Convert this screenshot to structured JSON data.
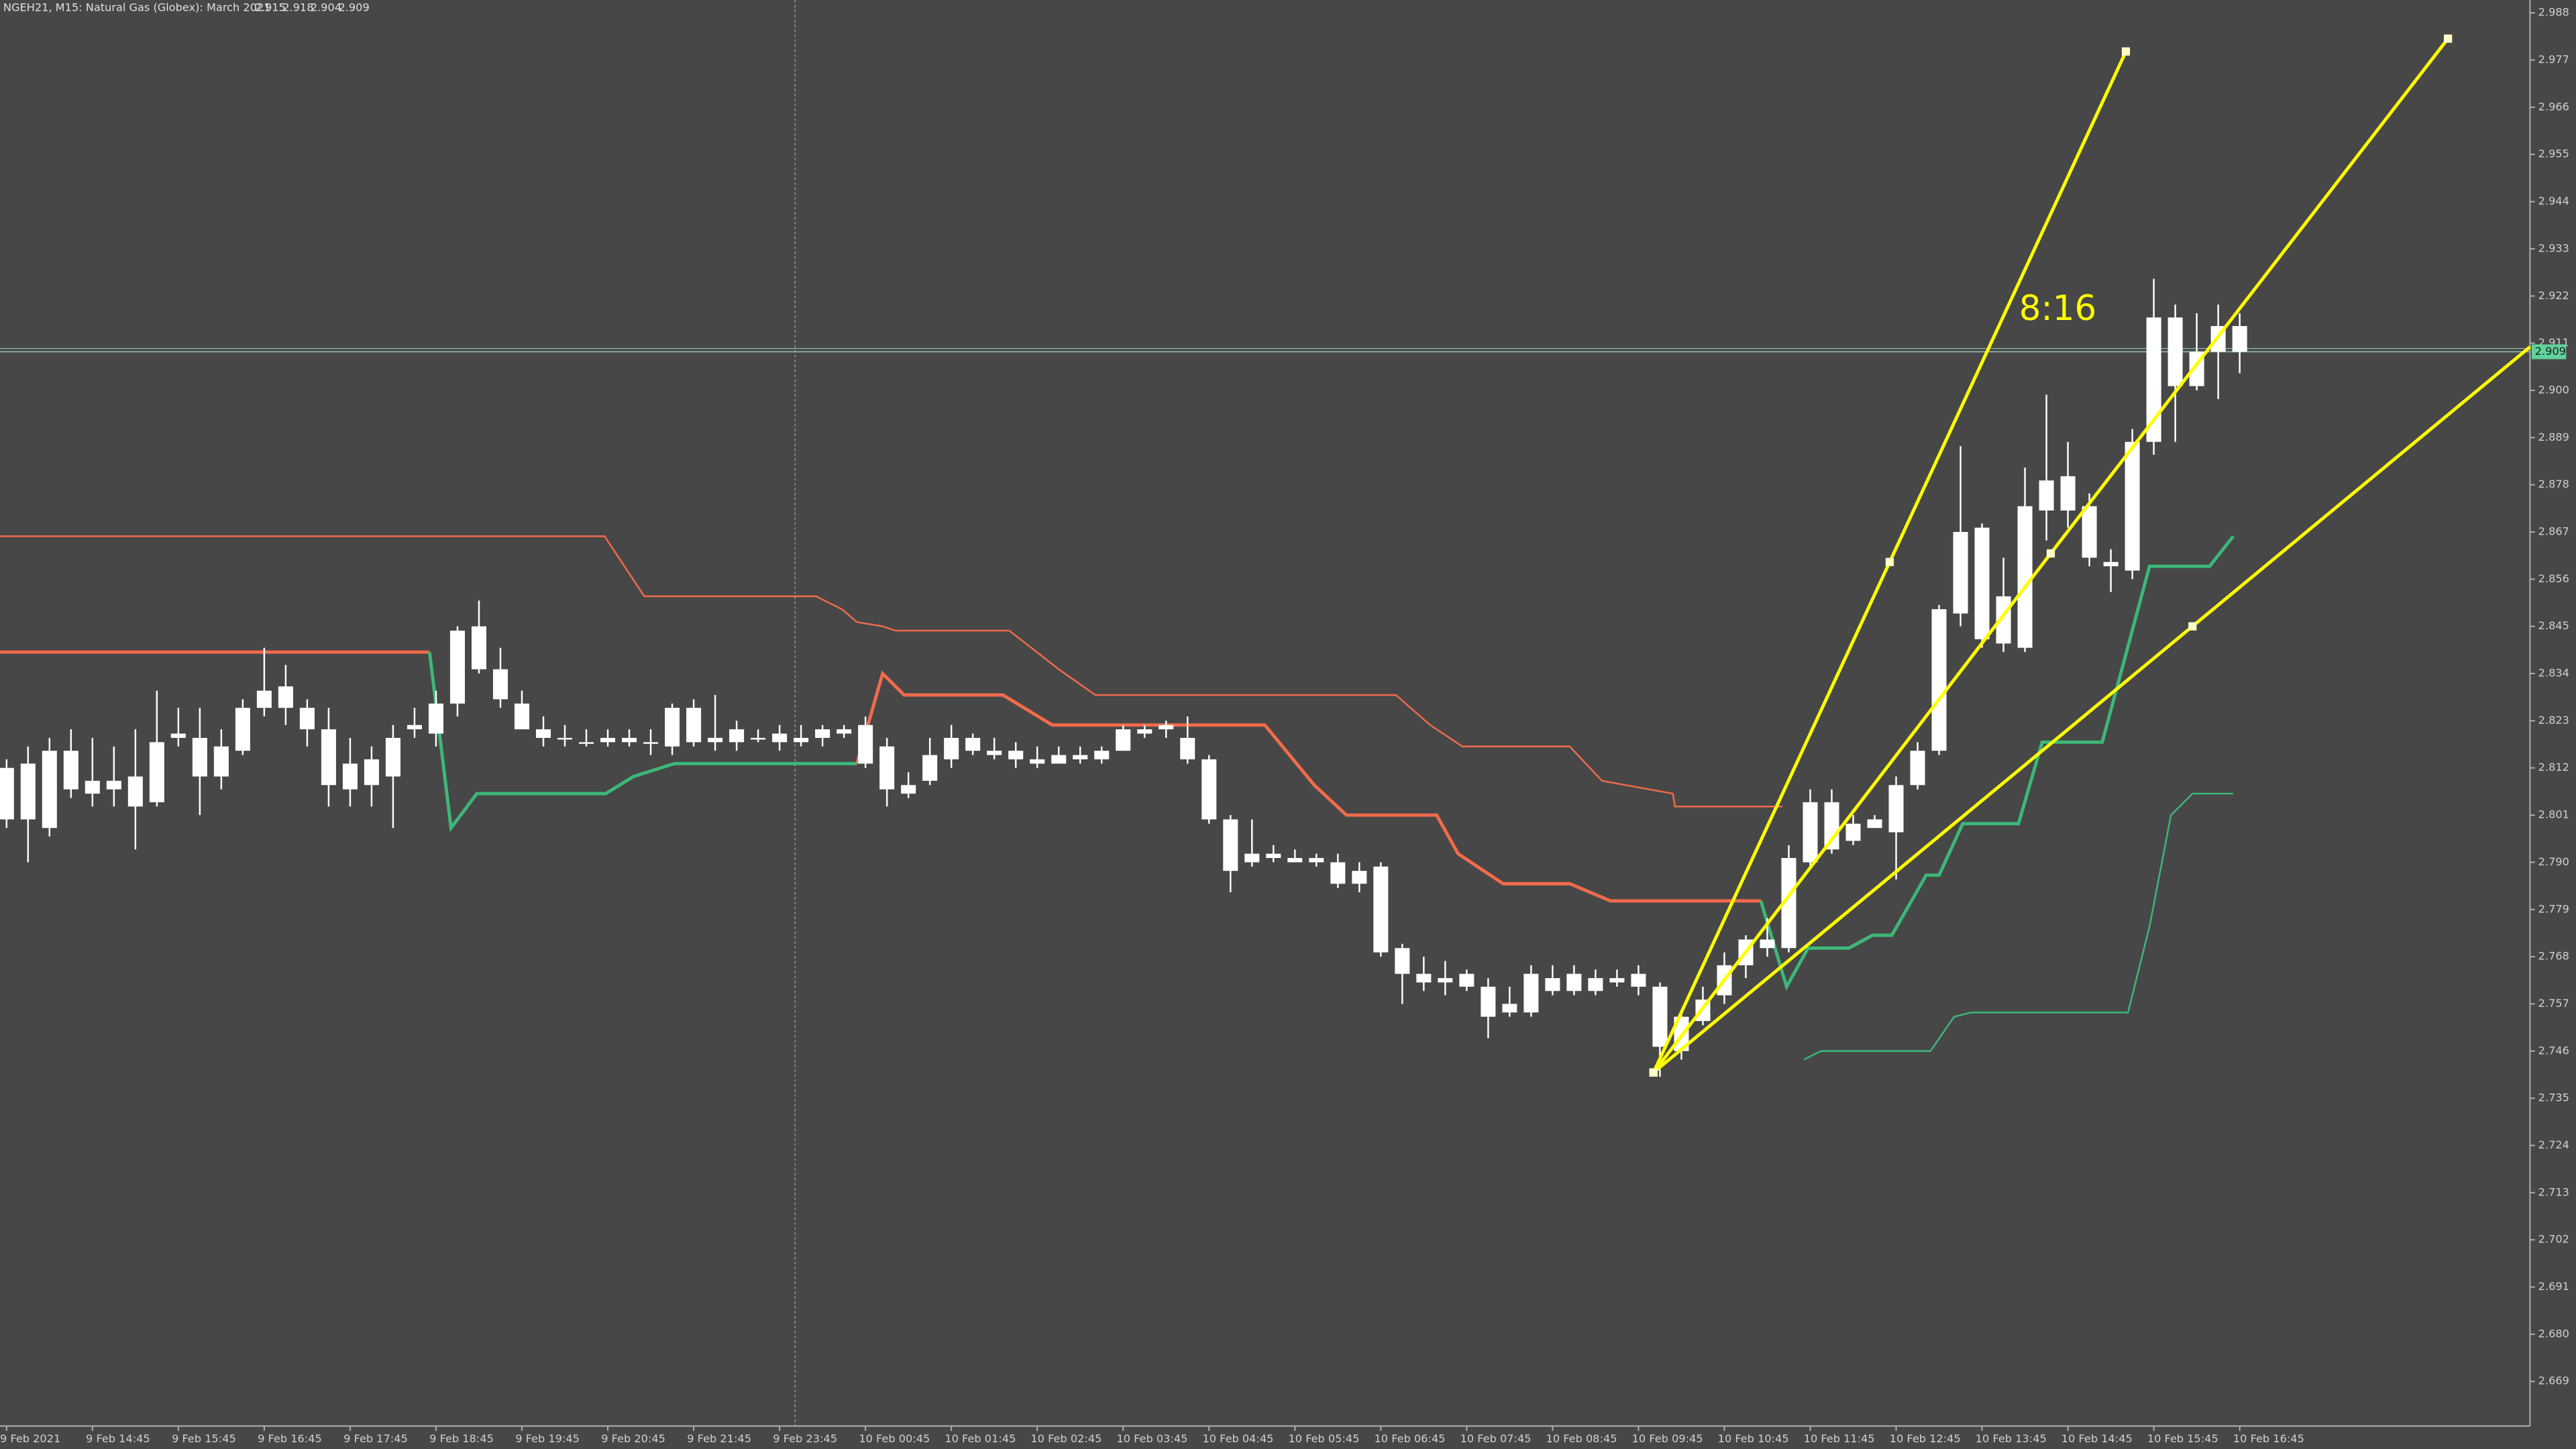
{
  "chart_data": {
    "type": "candlestick",
    "title": "NGEH21, M15:  Natural Gas (Globex): March 2021",
    "candle_color": "#ffffff",
    "background": "#474747",
    "ylim": [
      2.6586,
      2.991
    ],
    "xlim": [
      -0.306,
      117.52
    ],
    "yticks": [
      2.988,
      2.977,
      2.966,
      2.955,
      2.944,
      2.933,
      2.922,
      2.911,
      {
        "value": 2.9,
        "label": "2.900"
      },
      2.889,
      2.878,
      2.867,
      2.856,
      2.845,
      2.834,
      2.823,
      2.812,
      2.801,
      {
        "value": 2.79,
        "label": "2.790"
      },
      2.779,
      2.768,
      2.757,
      2.746,
      2.735,
      2.724,
      2.713,
      2.702,
      2.691,
      {
        "value": 2.68,
        "label": "2.680"
      },
      2.669
    ],
    "xticks": [
      {
        "value": 0,
        "label": "9 Feb 2021"
      },
      {
        "value": 4,
        "label": "9 Feb 14:45"
      },
      {
        "value": 8,
        "label": "9 Feb 15:45"
      },
      {
        "value": 12,
        "label": "9 Feb 16:45"
      },
      {
        "value": 16,
        "label": "9 Feb 17:45"
      },
      {
        "value": 20,
        "label": "9 Feb 18:45"
      },
      {
        "value": 24,
        "label": "9 Feb 19:45"
      },
      {
        "value": 28,
        "label": "9 Feb 20:45"
      },
      {
        "value": 32,
        "label": "9 Feb 21:45"
      },
      {
        "value": 36,
        "label": "9 Feb 23:45"
      },
      {
        "value": 40,
        "label": "10 Feb 00:45"
      },
      {
        "value": 44,
        "label": "10 Feb 01:45"
      },
      {
        "value": 48,
        "label": "10 Feb 02:45"
      },
      {
        "value": 52,
        "label": "10 Feb 03:45"
      },
      {
        "value": 56,
        "label": "10 Feb 04:45"
      },
      {
        "value": 60,
        "label": "10 Feb 05:45"
      },
      {
        "value": 64,
        "label": "10 Feb 06:45"
      },
      {
        "value": 68,
        "label": "10 Feb 07:45"
      },
      {
        "value": 72,
        "label": "10 Feb 08:45"
      },
      {
        "value": 76,
        "label": "10 Feb 09:45"
      },
      {
        "value": 80,
        "label": "10 Feb 10:45"
      },
      {
        "value": 84,
        "label": "10 Feb 11:45"
      },
      {
        "value": 88,
        "label": "10 Feb 12:45"
      },
      {
        "value": 92,
        "label": "10 Feb 13:45"
      },
      {
        "value": 96,
        "label": "10 Feb 14:45"
      },
      {
        "value": 100,
        "label": "10 Feb 15:45"
      },
      {
        "value": 104,
        "label": "10 Feb 16:45"
      }
    ],
    "candles": {
      "open": [
        2.8,
        2.8,
        2.798,
        2.807,
        2.806,
        2.807,
        2.803,
        2.804,
        2.819,
        2.81,
        2.81,
        2.816,
        2.826,
        2.826,
        2.821,
        2.808,
        2.807,
        2.808,
        2.81,
        2.821,
        2.82,
        2.827,
        2.835,
        2.828,
        2.821,
        2.819,
        2.819,
        2.818,
        2.818,
        2.818,
        2.818,
        2.817,
        2.818,
        2.818,
        2.818,
        2.819,
        2.818,
        2.818,
        2.819,
        2.82,
        2.813,
        2.817,
        2.808,
        2.809,
        2.814,
        2.819,
        2.816,
        2.816,
        2.814,
        2.813,
        2.814,
        2.814,
        2.816,
        2.82,
        2.821,
        2.819,
        2.814,
        2.8,
        2.79,
        2.792,
        2.791,
        2.791,
        2.79,
        2.788,
        2.789,
        2.77,
        2.764,
        2.763,
        2.764,
        2.761,
        2.755,
        2.755,
        2.76,
        2.76,
        2.763,
        2.762,
        2.764,
        2.761,
        2.746,
        2.753,
        2.759,
        2.766,
        2.77,
        2.77,
        2.79,
        2.804,
        2.795,
        2.798,
        2.797,
        2.808,
        2.816,
        2.848,
        2.868,
        2.841,
        2.84,
        2.872,
        2.88,
        2.873,
        2.859,
        2.858,
        2.888,
        2.917,
        2.901,
        2.909,
        2.915
      ],
      "high": [
        2.814,
        2.817,
        2.819,
        2.821,
        2.819,
        2.817,
        2.821,
        2.83,
        2.826,
        2.826,
        2.821,
        2.828,
        2.84,
        2.836,
        2.828,
        2.826,
        2.819,
        2.817,
        2.822,
        2.826,
        2.83,
        2.845,
        2.851,
        2.84,
        2.83,
        2.824,
        2.822,
        2.821,
        2.821,
        2.821,
        2.821,
        2.827,
        2.828,
        2.829,
        2.823,
        2.821,
        2.822,
        2.822,
        2.822,
        2.822,
        2.824,
        2.819,
        2.811,
        2.819,
        2.822,
        2.82,
        2.819,
        2.818,
        2.817,
        2.817,
        2.817,
        2.817,
        2.822,
        2.822,
        2.823,
        2.824,
        2.815,
        2.801,
        2.8,
        2.794,
        2.793,
        2.792,
        2.792,
        2.79,
        2.79,
        2.771,
        2.768,
        2.767,
        2.765,
        2.763,
        2.761,
        2.766,
        2.766,
        2.766,
        2.765,
        2.765,
        2.766,
        2.762,
        2.755,
        2.761,
        2.769,
        2.773,
        2.777,
        2.794,
        2.807,
        2.807,
        2.801,
        2.801,
        2.81,
        2.818,
        2.85,
        2.887,
        2.869,
        2.861,
        2.882,
        2.899,
        2.888,
        2.876,
        2.863,
        2.891,
        2.926,
        2.92,
        2.918,
        2.92,
        2.918
      ],
      "low": [
        2.798,
        2.79,
        2.796,
        2.805,
        2.803,
        2.803,
        2.793,
        2.803,
        2.817,
        2.801,
        2.807,
        2.815,
        2.824,
        2.822,
        2.817,
        2.803,
        2.803,
        2.803,
        2.798,
        2.819,
        2.817,
        2.824,
        2.834,
        2.826,
        2.821,
        2.817,
        2.817,
        2.817,
        2.817,
        2.817,
        2.815,
        2.815,
        2.817,
        2.816,
        2.816,
        2.818,
        2.816,
        2.817,
        2.817,
        2.819,
        2.812,
        2.803,
        2.805,
        2.808,
        2.812,
        2.815,
        2.814,
        2.812,
        2.812,
        2.813,
        2.813,
        2.813,
        2.816,
        2.819,
        2.819,
        2.813,
        2.799,
        2.783,
        2.789,
        2.79,
        2.79,
        2.789,
        2.784,
        2.783,
        2.768,
        2.757,
        2.76,
        2.759,
        2.76,
        2.749,
        2.754,
        2.754,
        2.759,
        2.759,
        2.759,
        2.761,
        2.759,
        2.74,
        2.744,
        2.752,
        2.757,
        2.763,
        2.768,
        2.769,
        2.789,
        2.792,
        2.794,
        2.798,
        2.786,
        2.807,
        2.815,
        2.845,
        2.84,
        2.839,
        2.839,
        2.865,
        2.868,
        2.859,
        2.853,
        2.856,
        2.885,
        2.888,
        2.9,
        2.898,
        2.904
      ],
      "close": [
        2.812,
        2.813,
        2.816,
        2.816,
        2.809,
        2.809,
        2.81,
        2.818,
        2.82,
        2.819,
        2.817,
        2.826,
        2.83,
        2.831,
        2.826,
        2.821,
        2.813,
        2.814,
        2.819,
        2.822,
        2.827,
        2.844,
        2.845,
        2.835,
        2.827,
        2.821,
        2.819,
        2.818,
        2.819,
        2.819,
        2.818,
        2.826,
        2.826,
        2.819,
        2.821,
        2.819,
        2.82,
        2.819,
        2.821,
        2.821,
        2.822,
        2.807,
        2.806,
        2.815,
        2.819,
        2.816,
        2.815,
        2.814,
        2.813,
        2.815,
        2.815,
        2.816,
        2.821,
        2.821,
        2.822,
        2.814,
        2.8,
        2.788,
        2.792,
        2.791,
        2.79,
        2.79,
        2.785,
        2.785,
        2.769,
        2.764,
        2.762,
        2.762,
        2.761,
        2.754,
        2.757,
        2.764,
        2.763,
        2.764,
        2.76,
        2.763,
        2.761,
        2.747,
        2.754,
        2.758,
        2.766,
        2.772,
        2.772,
        2.791,
        2.804,
        2.793,
        2.799,
        2.8,
        2.808,
        2.816,
        2.849,
        2.867,
        2.842,
        2.852,
        2.873,
        2.879,
        2.872,
        2.861,
        2.86,
        2.888,
        2.917,
        2.901,
        2.909,
        2.915,
        2.909
      ]
    },
    "lines": [
      {
        "color": "#f26b4b",
        "width": 1,
        "x": [
          -0.3,
          27.85,
          29.7,
          37.7,
          38.9,
          39.6,
          40.8,
          41.4,
          46.7,
          49.0,
          50.7,
          64.7,
          66.3,
          67.8,
          72.8,
          74.3,
          77.6,
          77.7,
          82.7
        ],
        "values": [
          2.866,
          2.866,
          2.852,
          2.852,
          2.849,
          2.846,
          2.845,
          2.844,
          2.844,
          2.835,
          2.829,
          2.829,
          2.822,
          2.817,
          2.817,
          2.809,
          2.806,
          2.803,
          2.803
        ]
      },
      {
        "color": "#f26b4b",
        "width": 2,
        "x": [
          -0.3,
          19.7
        ],
        "values": [
          2.839,
          2.839
        ]
      },
      {
        "color": "#3cb878",
        "width": 2,
        "x": [
          19.7,
          20.7,
          21.9,
          27.9,
          29.2,
          31.1,
          39.6
        ],
        "values": [
          2.839,
          2.798,
          2.806,
          2.806,
          2.81,
          2.813,
          2.813
        ]
      },
      {
        "color": "#f26b4b",
        "width": 2,
        "x": [
          39.6,
          40.8,
          41.8,
          46.4,
          48.7,
          50.2,
          58.6,
          60.9,
          62.4,
          66.6,
          67.6,
          69.7,
          72.8,
          74.7,
          81.7
        ],
        "values": [
          2.813,
          2.834,
          2.829,
          2.829,
          2.822,
          2.822,
          2.822,
          2.808,
          2.801,
          2.801,
          2.792,
          2.785,
          2.785,
          2.781,
          2.781
        ]
      },
      {
        "color": "#3cb878",
        "width": 2,
        "x": [
          81.7,
          82.9,
          83.9,
          85.8,
          86.9,
          87.8,
          89.4,
          90.0,
          91.1,
          93.7,
          94.8,
          97.6,
          99.8,
          102.6,
          103.7
        ],
        "values": [
          2.781,
          2.761,
          2.77,
          2.77,
          2.773,
          2.773,
          2.787,
          2.787,
          2.799,
          2.799,
          2.818,
          2.818,
          2.859,
          2.859,
          2.866
        ]
      },
      {
        "color": "#3cb878",
        "width": 1,
        "x": [
          83.7,
          84.5,
          89.6,
          90.7,
          91.5,
          98.8,
          99.8,
          100.8,
          101.8,
          103.7
        ],
        "values": [
          2.744,
          2.746,
          2.746,
          2.754,
          2.755,
          2.755,
          2.775,
          2.801,
          2.806,
          2.806
        ]
      }
    ],
    "trendlines": [
      {
        "color": "#ffff00",
        "x": [
          76.7,
          87.7,
          98.7
        ],
        "values": [
          2.741,
          2.86,
          2.979
        ],
        "ray": false
      },
      {
        "color": "#ffff00",
        "x": [
          76.7,
          95.2,
          113.7
        ],
        "values": [
          2.741,
          2.862,
          2.982
        ],
        "ray": false
      },
      {
        "color": "#ffff00",
        "x": [
          76.7,
          101.8
        ],
        "values": [
          2.741,
          2.845
        ],
        "ray": true
      }
    ],
    "annotation": "8:16",
    "price_label_color": "#5fd39a"
  }
}
